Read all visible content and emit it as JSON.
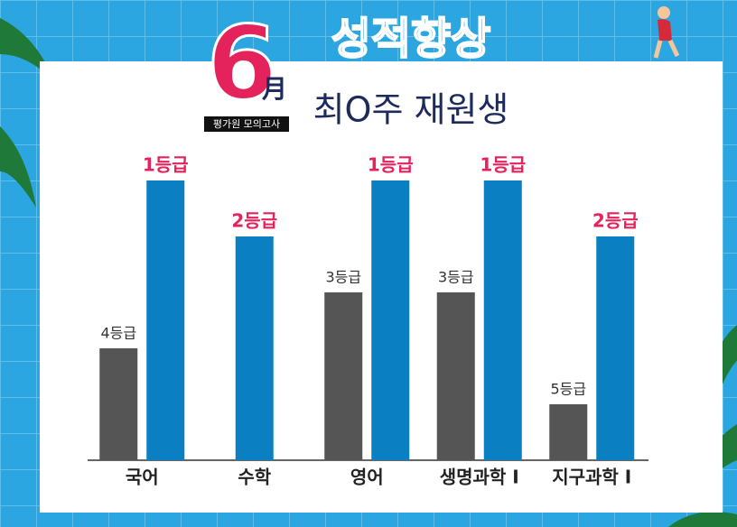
{
  "chart_data": {
    "type": "bar",
    "badge": {
      "number": "6",
      "month": "月",
      "caption": "평가원 모의고사"
    },
    "title": "성적향상",
    "subtitle": "최O주 재원생",
    "categories": [
      "국어",
      "수학",
      "영어",
      "생명과학 Ⅰ",
      "지구과학 Ⅰ"
    ],
    "series": [
      {
        "color": "#555555",
        "values": [
          4,
          null,
          3,
          3,
          5
        ],
        "value_labels": [
          "4등급",
          null,
          "3등급",
          "3등급",
          "5등급"
        ]
      },
      {
        "color": "#0a7fc2",
        "values": [
          1,
          2,
          1,
          1,
          2
        ],
        "value_labels": [
          "1등급",
          "2등급",
          "1등급",
          "1등급",
          "2등급"
        ]
      }
    ],
    "ylim": [
      6,
      0
    ]
  }
}
